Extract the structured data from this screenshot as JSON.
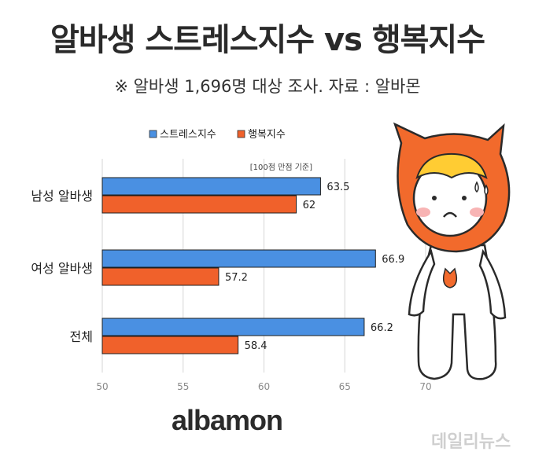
{
  "header": {
    "title": "알바생 스트레스지수 vs 행복지수",
    "subtitle": "※ 알바생 1,696명 대상 조사. 자료 : 알바몬"
  },
  "chart_data": {
    "type": "bar",
    "orientation": "horizontal",
    "categories": [
      "남성 알바생",
      "여성 알바생",
      "전체"
    ],
    "series": [
      {
        "name": "스트레스지수",
        "values": [
          63.5,
          66.9,
          66.2
        ],
        "color": "#4a90e2"
      },
      {
        "name": "행복지수",
        "values": [
          62,
          57.2,
          58.4
        ],
        "color": "#f0612b"
      }
    ],
    "value_labels": [
      [
        "63.5",
        "66.9",
        "66.2"
      ],
      [
        "62",
        "57.2",
        "58.4"
      ]
    ],
    "xlim": [
      50,
      70
    ],
    "xticks": [
      50,
      55,
      60,
      65,
      70
    ],
    "note": "[100점 만점 기준]",
    "legend_position": "top",
    "grid": true
  },
  "footer": {
    "brand": "albamon",
    "watermark": "데일리뉴스"
  },
  "colors": {
    "character_orange": "#f26a2c",
    "hair_yellow": "#ffcc33"
  }
}
